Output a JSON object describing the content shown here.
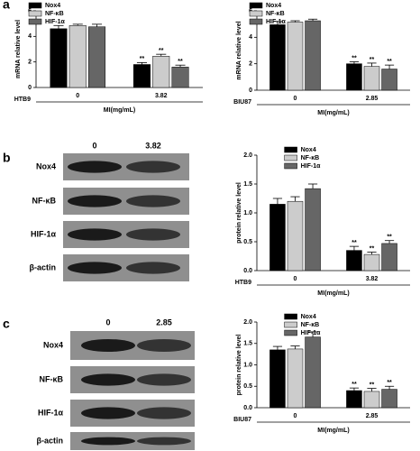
{
  "panel_labels": [
    "a",
    "b",
    "c"
  ],
  "blots": [
    {
      "columns": [
        "0",
        "3.82"
      ],
      "rows": [
        "Nox4",
        "NF-κB",
        "HIF-1α",
        "β-actin"
      ]
    },
    {
      "columns": [
        "0",
        "2.85"
      ],
      "rows": [
        "Nox4",
        "NF-κB",
        "HIF-1α",
        "β-actin"
      ]
    }
  ],
  "chart_data": [
    {
      "type": "bar",
      "ylabel": "mRNA relative level",
      "xlabel": "MI(mg/mL)",
      "cell_line": "HTB9",
      "categories": [
        "0",
        "3.82"
      ],
      "ylim": [
        0,
        6
      ],
      "yticks": [
        0,
        2,
        4,
        6
      ],
      "legend": "upper left",
      "series": [
        {
          "name": "Nox4",
          "color": "#000000",
          "values": [
            4.6,
            1.8
          ],
          "errors": [
            0.25,
            0.15
          ],
          "significance": [
            null,
            "**"
          ]
        },
        {
          "name": "NF-κB",
          "color": "#cccccc",
          "values": [
            4.85,
            2.45
          ],
          "errors": [
            0.1,
            0.15
          ],
          "significance": [
            null,
            "**"
          ]
        },
        {
          "name": "HIF-1α",
          "color": "#666666",
          "values": [
            4.75,
            1.6
          ],
          "errors": [
            0.2,
            0.15
          ],
          "significance": [
            null,
            "**"
          ]
        }
      ]
    },
    {
      "type": "bar",
      "ylabel": "mRNA relative level",
      "xlabel": "MI(mg/mL)",
      "cell_line": "BIU87",
      "categories": [
        "0",
        "2.85"
      ],
      "ylim": [
        0,
        6
      ],
      "yticks": [
        0,
        2,
        4,
        6
      ],
      "legend": "upper left",
      "series": [
        {
          "name": "Nox4",
          "color": "#000000",
          "values": [
            4.95,
            2.0
          ],
          "errors": [
            0.25,
            0.15
          ],
          "significance": [
            null,
            "**"
          ]
        },
        {
          "name": "NF-κB",
          "color": "#cccccc",
          "values": [
            5.15,
            1.8
          ],
          "errors": [
            0.1,
            0.25
          ],
          "significance": [
            null,
            "**"
          ]
        },
        {
          "name": "HIF-1α",
          "color": "#666666",
          "values": [
            5.25,
            1.6
          ],
          "errors": [
            0.12,
            0.3
          ],
          "significance": [
            null,
            "**"
          ]
        }
      ]
    },
    {
      "type": "bar",
      "ylabel": "protein relative level",
      "xlabel": "MI(mg/mL)",
      "cell_line": "HTB9",
      "categories": [
        "0",
        "3.82"
      ],
      "ylim": [
        0,
        2
      ],
      "yticks": [
        {
          "value": 0,
          "label": "0.0"
        },
        {
          "value": 0.5,
          "label": "0.5"
        },
        {
          "value": 1,
          "label": "1.0"
        },
        {
          "value": 1.5,
          "label": "1.5"
        },
        {
          "value": 2,
          "label": "2.0"
        }
      ],
      "legend": "upper right",
      "series": [
        {
          "name": "Nox4",
          "color": "#000000",
          "values": [
            1.15,
            0.35
          ],
          "errors": [
            0.1,
            0.07
          ],
          "significance": [
            null,
            "**"
          ]
        },
        {
          "name": "NF-κB",
          "color": "#cccccc",
          "values": [
            1.2,
            0.28
          ],
          "errors": [
            0.08,
            0.04
          ],
          "significance": [
            null,
            "**"
          ]
        },
        {
          "name": "HIF-1α",
          "color": "#666666",
          "values": [
            1.42,
            0.47
          ],
          "errors": [
            0.08,
            0.05
          ],
          "significance": [
            null,
            "**"
          ]
        }
      ]
    },
    {
      "type": "bar",
      "ylabel": "protein relative level",
      "xlabel": "MI(mg/mL)",
      "cell_line": "BIU87",
      "categories": [
        "0",
        "2.85"
      ],
      "ylim": [
        0,
        2
      ],
      "yticks": [
        {
          "value": 0,
          "label": "0.0"
        },
        {
          "value": 0.5,
          "label": "0.5"
        },
        {
          "value": 1,
          "label": "1.0"
        },
        {
          "value": 1.5,
          "label": "1.5"
        },
        {
          "value": 2,
          "label": "2.0"
        }
      ],
      "legend": "upper right",
      "series": [
        {
          "name": "Nox4",
          "color": "#000000",
          "values": [
            1.35,
            0.4
          ],
          "errors": [
            0.08,
            0.06
          ],
          "significance": [
            null,
            "**"
          ]
        },
        {
          "name": "NF-κB",
          "color": "#cccccc",
          "values": [
            1.37,
            0.38
          ],
          "errors": [
            0.07,
            0.07
          ],
          "significance": [
            null,
            "**"
          ]
        },
        {
          "name": "HIF-1α",
          "color": "#666666",
          "values": [
            1.65,
            0.43
          ],
          "errors": [
            0.12,
            0.07
          ],
          "significance": [
            null,
            "**"
          ]
        }
      ]
    }
  ]
}
